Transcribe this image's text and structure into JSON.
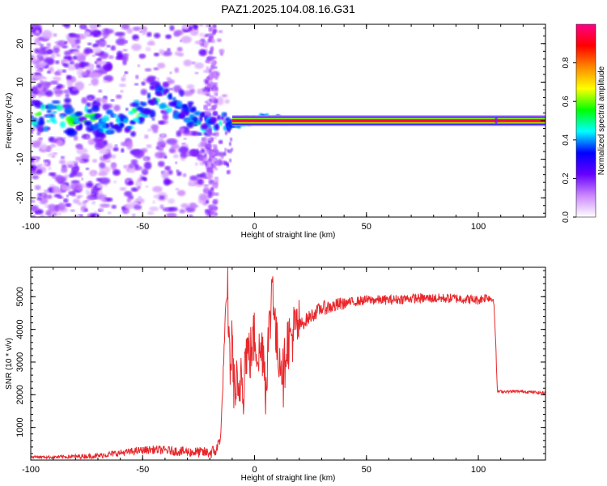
{
  "title": "PAZ1.2025.104.08.16.G31",
  "chart_data": [
    {
      "type": "heatmap",
      "xlabel": "Height of straight line (km)",
      "ylabel": "Frequency (Hz)",
      "xlim": [
        -100,
        130
      ],
      "ylim": [
        -25,
        25
      ],
      "xticks": [
        -100,
        -50,
        0,
        50,
        100
      ],
      "yticks": [
        -20,
        -10,
        0,
        10,
        20
      ],
      "colorbar": {
        "label": "Normalized spectral amplitude",
        "range": [
          0.0,
          1.0
        ],
        "ticks": [
          0.0,
          0.2,
          0.4,
          0.6,
          0.8
        ],
        "colors": [
          "#ffffff",
          "#cc88ff",
          "#6600ff",
          "#0000ff",
          "#00ffff",
          "#00ff00",
          "#ffff00",
          "#ff8800",
          "#ff0000",
          "#ff0088"
        ]
      },
      "ridge": [
        {
          "x": -75,
          "y": 1
        },
        {
          "x": -65,
          "y": 0
        },
        {
          "x": -58,
          "y": -2
        },
        {
          "x": -52,
          "y": 2
        },
        {
          "x": -45,
          "y": 5
        },
        {
          "x": -40,
          "y": 6
        },
        {
          "x": -35,
          "y": 4
        },
        {
          "x": -30,
          "y": 2
        },
        {
          "x": -25,
          "y": 0
        },
        {
          "x": -18,
          "y": 0
        },
        {
          "x": -12,
          "y": -1
        },
        {
          "x": -10,
          "y": -1
        },
        {
          "x": 0,
          "y": 0
        },
        {
          "x": 5,
          "y": 0.5
        },
        {
          "x": 10,
          "y": 0.5
        },
        {
          "x": 20,
          "y": 0
        },
        {
          "x": 130,
          "y": 0
        }
      ]
    },
    {
      "type": "line",
      "xlabel": "Height of straight line (km)",
      "ylabel": "SNR (10 * v/v)",
      "xlim": [
        -100,
        130
      ],
      "ylim": [
        0,
        5900
      ],
      "xticks": [
        -100,
        -50,
        0,
        50,
        100
      ],
      "yticks": [
        1000,
        2000,
        3000,
        4000,
        5000
      ],
      "series": [
        {
          "color": "#e8272b",
          "x": [
            -100,
            -90,
            -80,
            -70,
            -60,
            -50,
            -45,
            -40,
            -30,
            -25,
            -20,
            -17,
            -15,
            -13,
            -12,
            -11,
            -10,
            -9,
            -8,
            -7,
            -6,
            -5,
            -4,
            -2,
            0,
            2,
            4,
            5,
            6,
            7,
            8,
            9,
            10,
            12,
            13,
            14,
            16,
            18,
            20,
            25,
            30,
            35,
            40,
            45,
            50,
            60,
            70,
            80,
            90,
            100,
            104,
            107,
            108,
            108.5,
            110,
            120,
            130
          ],
          "y": [
            100,
            90,
            110,
            130,
            220,
            300,
            320,
            300,
            250,
            240,
            220,
            300,
            800,
            4500,
            5100,
            2800,
            3600,
            2000,
            2300,
            1500,
            3000,
            2200,
            3400,
            3200,
            3800,
            3200,
            3500,
            2100,
            3600,
            4200,
            5800,
            4300,
            3400,
            3100,
            2400,
            3600,
            3700,
            4000,
            4100,
            4400,
            4650,
            4700,
            4800,
            4850,
            4900,
            4900,
            4950,
            4950,
            4950,
            4900,
            5000,
            4900,
            3000,
            2100,
            2100,
            2100,
            2050
          ]
        }
      ]
    }
  ]
}
